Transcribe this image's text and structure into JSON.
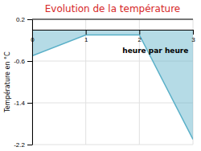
{
  "chart_data": {
    "type": "area",
    "title": "Evolution de la température",
    "ylabel": "Température en °C",
    "x": [
      0,
      1,
      2,
      3
    ],
    "values": [
      -0.5,
      -0.1,
      -0.1,
      -2.1
    ],
    "color": "#5ab0c8",
    "xlim": [
      0,
      3
    ],
    "ylim": [
      -2.2,
      0.2
    ],
    "xticks": [
      0,
      1,
      2,
      3
    ],
    "yticks": [
      0.2,
      -0.6,
      -1.4,
      -2.2
    ],
    "grid": true,
    "annotations": [
      {
        "text": "heure par heure",
        "x": 2.3,
        "y": -0.4
      }
    ]
  }
}
